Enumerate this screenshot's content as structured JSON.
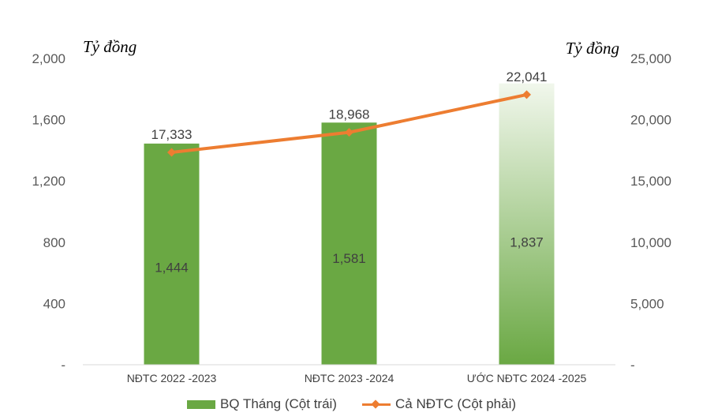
{
  "chart_data": {
    "type": "bar+line",
    "categories": [
      "NĐTC 2022 -2023",
      "NĐTC 2023 -2024",
      "ƯỚC NĐTC 2024 -2025"
    ],
    "series": [
      {
        "name": "BQ Tháng (Cột trái)",
        "type": "bar",
        "axis": "left",
        "values": [
          1444,
          1581,
          1837
        ],
        "labels": [
          "1,444",
          "1,581",
          "1,837"
        ],
        "color": "#6aa843"
      },
      {
        "name": "Cả NĐTC (Cột phải)",
        "type": "line",
        "axis": "right",
        "values": [
          17333,
          18968,
          22041
        ],
        "labels": [
          "17,333",
          "18,968",
          "22,041"
        ],
        "color": "#ed7d31"
      }
    ],
    "left_axis": {
      "label": "Tỷ đồng",
      "ylim": [
        0,
        2000
      ],
      "ticks": [
        {
          "v": 0,
          "t": "-"
        },
        {
          "v": 400,
          "t": "400"
        },
        {
          "v": 800,
          "t": "800"
        },
        {
          "v": 1200,
          "t": "1,200"
        },
        {
          "v": 1600,
          "t": "1,600"
        },
        {
          "v": 2000,
          "t": "2,000"
        }
      ]
    },
    "right_axis": {
      "label": "Tỷ đồng",
      "ylim": [
        0,
        25000
      ],
      "ticks": [
        {
          "v": 0,
          "t": "-"
        },
        {
          "v": 5000,
          "t": "5,000"
        },
        {
          "v": 10000,
          "t": "10,000"
        },
        {
          "v": 15000,
          "t": "15,000"
        },
        {
          "v": 20000,
          "t": "20,000"
        },
        {
          "v": 25000,
          "t": "25,000"
        }
      ]
    },
    "grid": false,
    "legend": "bottom",
    "last_bar_gradient": true
  }
}
